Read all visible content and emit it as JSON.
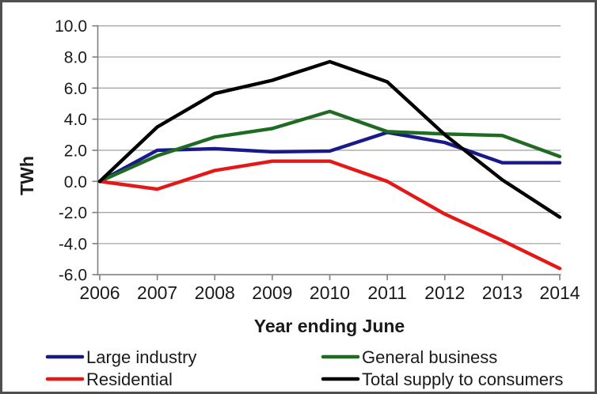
{
  "chart_data": {
    "type": "line",
    "title": "",
    "xlabel": "Year ending June",
    "ylabel": "TWh",
    "x": [
      2006,
      2007,
      2008,
      2009,
      2010,
      2011,
      2012,
      2013,
      2014
    ],
    "xticklabels": [
      "2006",
      "2007",
      "2008",
      "2009",
      "2010",
      "2011",
      "2012",
      "2013",
      "2014"
    ],
    "series": [
      {
        "name": "Large industry",
        "color": "#19198c",
        "values": [
          0.0,
          2.0,
          2.1,
          1.9,
          1.95,
          3.15,
          2.5,
          1.2,
          1.2
        ]
      },
      {
        "name": "General business",
        "color": "#1e6b21",
        "values": [
          0.0,
          1.65,
          2.85,
          3.4,
          4.5,
          3.2,
          3.05,
          2.95,
          1.6
        ]
      },
      {
        "name": "Residential",
        "color": "#e51818",
        "values": [
          0.0,
          -0.5,
          0.7,
          1.3,
          1.3,
          0.0,
          -2.1,
          -3.8,
          -5.6
        ]
      },
      {
        "name": "Total supply to consumers",
        "color": "#000000",
        "values": [
          0.0,
          3.5,
          5.65,
          6.5,
          7.7,
          6.4,
          3.0,
          0.1,
          -2.3
        ]
      }
    ],
    "ylim": [
      -6,
      10
    ],
    "ytick_step": 2,
    "yticklabels": [
      "10.0",
      "8.0",
      "6.0",
      "4.0",
      "2.0",
      "0.0",
      "-2.0",
      "-4.0",
      "-6.0"
    ],
    "grid": true,
    "legend_position": "bottom",
    "legend_columns": 2
  },
  "colors": {
    "gridline": "#a6a6a6",
    "axis": "#808080",
    "text": "#1a1a1a",
    "frame_border": "#4f4f4f",
    "background": "#ffffff"
  }
}
